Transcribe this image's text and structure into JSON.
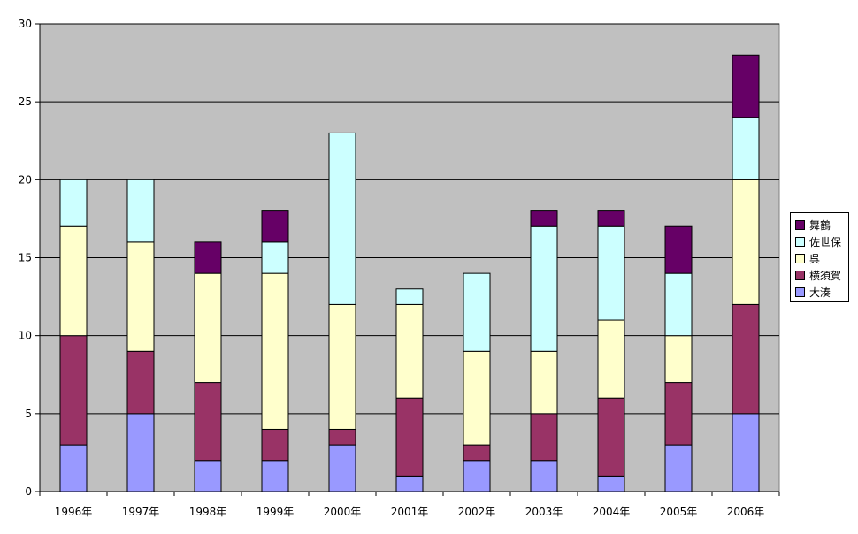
{
  "chart_data": {
    "type": "bar",
    "stacked": true,
    "categories": [
      "1996年",
      "1997年",
      "1998年",
      "1999年",
      "2000年",
      "2001年",
      "2002年",
      "2003年",
      "2004年",
      "2005年",
      "2006年"
    ],
    "series": [
      {
        "name": "大湊",
        "color": "#9999ff",
        "values": [
          3,
          5,
          2,
          2,
          3,
          1,
          2,
          2,
          1,
          3,
          5
        ]
      },
      {
        "name": "横須賀",
        "color": "#993366",
        "values": [
          7,
          4,
          5,
          2,
          1,
          5,
          1,
          3,
          5,
          4,
          7
        ]
      },
      {
        "name": "呉",
        "color": "#ffffcc",
        "values": [
          7,
          7,
          7,
          10,
          8,
          6,
          6,
          4,
          5,
          3,
          8
        ]
      },
      {
        "name": "佐世保",
        "color": "#ccffff",
        "values": [
          3,
          4,
          0,
          2,
          11,
          1,
          5,
          8,
          6,
          4,
          4
        ]
      },
      {
        "name": "舞鶴",
        "color": "#660066",
        "values": [
          0,
          0,
          2,
          2,
          0,
          0,
          0,
          1,
          1,
          3,
          4
        ]
      }
    ],
    "ylim": [
      0,
      30
    ],
    "yticks": [
      "0",
      "5",
      "10",
      "15",
      "20",
      "25",
      "30"
    ],
    "grid": true,
    "plot_background": "#c0c0c0",
    "legend_position": "right",
    "legend_order": [
      "舞鶴",
      "佐世保",
      "呉",
      "横須賀",
      "大湊"
    ],
    "title": "",
    "xlabel": "",
    "ylabel": ""
  }
}
